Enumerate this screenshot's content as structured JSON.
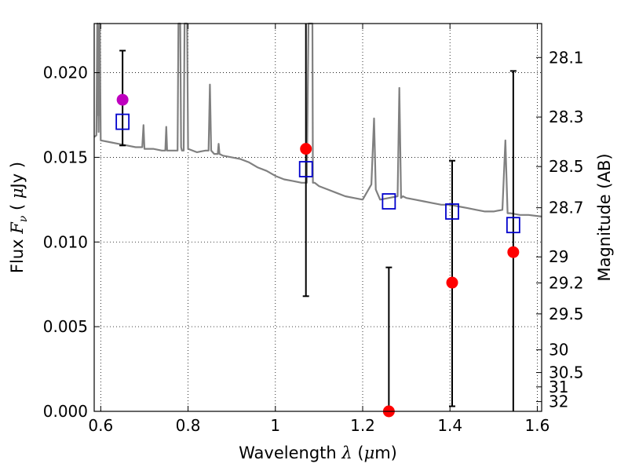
{
  "chart_data": {
    "type": "scatter",
    "xlabel_parts": [
      "Wavelength  ",
      "λ",
      " (",
      "μ",
      "m)"
    ],
    "ylabel_parts": [
      "Flux  ",
      "F",
      "ν",
      "  ( ",
      "μ",
      "Jy )"
    ],
    "y2label": "Magnitude (AB)",
    "xlim": [
      0.585,
      1.61
    ],
    "ylim": [
      0.0,
      0.0229
    ],
    "grid": true,
    "xticks": [
      0.6,
      0.8,
      1.0,
      1.2,
      1.4,
      1.6
    ],
    "xtick_labels": [
      "0.6",
      "0.8",
      "1",
      "1.2",
      "1.4",
      "1.6"
    ],
    "yticks": [
      0.0,
      0.005,
      0.01,
      0.015,
      0.02
    ],
    "ytick_labels": [
      "0.000",
      "0.005",
      "0.010",
      "0.015",
      "0.020"
    ],
    "mag_ticks": [
      28.1,
      28.3,
      28.5,
      28.7,
      29,
      29.2,
      29.5,
      30,
      30.5,
      31,
      32
    ],
    "mag_tick_labels": [
      "28.1",
      "28.3",
      "28.5",
      "28.7",
      "29",
      "29.2",
      "29.5",
      "30",
      "30.5",
      "31",
      "32"
    ],
    "model_spectrum": {
      "color": "#808080",
      "x": [
        0.585,
        0.59,
        0.592,
        0.5925,
        0.593,
        0.595,
        0.597,
        0.5975,
        0.598,
        0.6,
        0.62,
        0.64,
        0.66,
        0.68,
        0.695,
        0.698,
        0.7,
        0.72,
        0.74,
        0.748,
        0.75,
        0.752,
        0.76,
        0.776,
        0.778,
        0.782,
        0.784,
        0.786,
        0.788,
        0.79,
        0.792,
        0.794,
        0.796,
        0.798,
        0.8,
        0.82,
        0.84,
        0.847,
        0.85,
        0.853,
        0.86,
        0.868,
        0.87,
        0.872,
        0.88,
        0.9,
        0.92,
        0.94,
        0.96,
        0.98,
        1.0,
        1.02,
        1.04,
        1.06,
        1.065,
        1.072,
        1.076,
        1.077,
        1.08,
        1.083,
        1.085,
        1.086,
        1.09,
        1.1,
        1.12,
        1.14,
        1.16,
        1.18,
        1.2,
        1.22,
        1.226,
        1.23,
        1.24,
        1.26,
        1.28,
        1.284,
        1.288,
        1.292,
        1.3,
        1.32,
        1.34,
        1.36,
        1.38,
        1.4,
        1.42,
        1.44,
        1.46,
        1.48,
        1.5,
        1.52,
        1.527,
        1.532,
        1.538,
        1.56,
        1.58,
        1.61
      ],
      "y": [
        0.0162,
        0.0163,
        0.0229,
        0.0175,
        0.0229,
        0.0165,
        0.0229,
        0.0175,
        0.0229,
        0.016,
        0.0159,
        0.0158,
        0.0157,
        0.0156,
        0.0156,
        0.0169,
        0.0155,
        0.0155,
        0.0154,
        0.0154,
        0.0168,
        0.0154,
        0.0154,
        0.0154,
        0.0229,
        0.0229,
        0.0156,
        0.0154,
        0.0154,
        0.0154,
        0.0229,
        0.0229,
        0.0229,
        0.0229,
        0.0155,
        0.0153,
        0.0154,
        0.0154,
        0.0193,
        0.0154,
        0.0152,
        0.0152,
        0.0158,
        0.0152,
        0.0151,
        0.015,
        0.0149,
        0.0147,
        0.0144,
        0.0142,
        0.0139,
        0.0137,
        0.0136,
        0.0135,
        0.0135,
        0.0135,
        0.0229,
        0.0229,
        0.0229,
        0.0229,
        0.0229,
        0.0135,
        0.0135,
        0.0133,
        0.0131,
        0.0129,
        0.0127,
        0.0126,
        0.0125,
        0.0134,
        0.0173,
        0.0131,
        0.0125,
        0.0126,
        0.0127,
        0.0191,
        0.0126,
        0.0127,
        0.0126,
        0.0125,
        0.0124,
        0.0123,
        0.0122,
        0.0122,
        0.0121,
        0.012,
        0.0119,
        0.0118,
        0.0118,
        0.0119,
        0.016,
        0.0117,
        0.0117,
        0.0116,
        0.0116,
        0.0115
      ]
    },
    "model_photometry": {
      "marker": "open-square",
      "color": "#0000cc",
      "x": [
        0.65,
        1.07,
        1.26,
        1.405,
        1.545
      ],
      "y": [
        0.0171,
        0.0143,
        0.0124,
        0.0118,
        0.011
      ]
    },
    "observed_photometry": [
      {
        "x": 0.65,
        "y": 0.0184,
        "yerr_low": 0.0157,
        "yerr_high": 0.0213,
        "color": "#bf00bf"
      },
      {
        "x": 1.07,
        "y": 0.0155,
        "yerr_low": 0.0068,
        "yerr_high": 0.0229,
        "color": "#ff0000"
      },
      {
        "x": 1.26,
        "y": 0.0,
        "yerr_low": 0.0,
        "yerr_high": 0.0085,
        "color": "#ff0000"
      },
      {
        "x": 1.405,
        "y": 0.0076,
        "yerr_low": 0.0003,
        "yerr_high": 0.0148,
        "color": "#ff0000"
      },
      {
        "x": 1.545,
        "y": 0.0094,
        "yerr_low": 0.0,
        "yerr_high": 0.0201,
        "color": "#ff0000"
      }
    ]
  }
}
